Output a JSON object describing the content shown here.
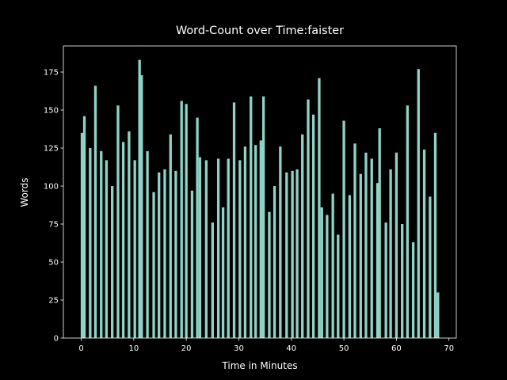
{
  "chart_data": {
    "type": "bar",
    "title": "Word-Count over Time:faister",
    "x_label": "Time in Minutes",
    "y_label": "Words",
    "color": "#8dd3c7",
    "x": [
      0.15,
      0.6,
      1.7,
      2.7,
      3.8,
      4.8,
      5.9,
      7.0,
      8.0,
      9.1,
      10.2,
      11.1,
      11.5,
      12.6,
      13.8,
      14.8,
      15.9,
      17.0,
      18.0,
      19.1,
      20.0,
      21.1,
      22.1,
      22.6,
      23.8,
      25.0,
      26.1,
      27.0,
      28.0,
      29.1,
      30.2,
      31.2,
      32.3,
      33.2,
      34.2,
      34.7,
      35.8,
      36.8,
      37.9,
      39.1,
      40.2,
      41.1,
      42.1,
      43.2,
      44.2,
      45.3,
      45.8,
      46.8,
      47.9,
      48.9,
      50.0,
      51.1,
      52.1,
      53.2,
      54.2,
      55.3,
      56.4,
      56.8,
      58.0,
      58.9,
      60.0,
      61.1,
      62.1,
      63.2,
      64.2,
      65.3,
      66.4,
      67.4,
      67.9
    ],
    "values": [
      135,
      146,
      125,
      166,
      123,
      117,
      100,
      153,
      129,
      136,
      117,
      183,
      173,
      123,
      96,
      109,
      111,
      134,
      110,
      156,
      154,
      97,
      145,
      119,
      117,
      76,
      118,
      86,
      118,
      155,
      117,
      126,
      159,
      127,
      130,
      159,
      83,
      100,
      126,
      109,
      110,
      111,
      134,
      157,
      147,
      171,
      86,
      81,
      95,
      68,
      143,
      94,
      128,
      108,
      122,
      118,
      102,
      138,
      76,
      111,
      122,
      75,
      153,
      63,
      177,
      124,
      93,
      135,
      30
    ],
    "xlim": [
      -3.4,
      71.4
    ],
    "xticks": [
      0,
      10,
      20,
      30,
      40,
      50,
      60,
      70
    ],
    "ylim": [
      0,
      192.2
    ],
    "yticks": [
      0,
      25,
      50,
      75,
      100,
      125,
      150,
      175
    ]
  }
}
